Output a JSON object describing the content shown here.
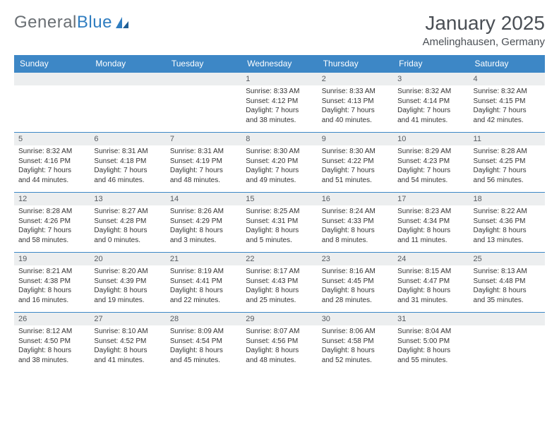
{
  "brand": {
    "part1": "General",
    "part2": "Blue"
  },
  "title": "January 2025",
  "location": "Amelinghausen, Germany",
  "colors": {
    "header_bg": "#3d87c6",
    "header_text": "#ffffff",
    "daynum_bg": "#eceeef",
    "border": "#3d87c6",
    "text": "#333333",
    "title": "#4a4f55",
    "logo_gray": "#6a6f74",
    "logo_blue": "#2f7dc0"
  },
  "weekdays": [
    "Sunday",
    "Monday",
    "Tuesday",
    "Wednesday",
    "Thursday",
    "Friday",
    "Saturday"
  ],
  "grid": [
    [
      null,
      null,
      null,
      {
        "d": "1",
        "sr": "8:33 AM",
        "ss": "4:12 PM",
        "dl": "7 hours and 38 minutes."
      },
      {
        "d": "2",
        "sr": "8:33 AM",
        "ss": "4:13 PM",
        "dl": "7 hours and 40 minutes."
      },
      {
        "d": "3",
        "sr": "8:32 AM",
        "ss": "4:14 PM",
        "dl": "7 hours and 41 minutes."
      },
      {
        "d": "4",
        "sr": "8:32 AM",
        "ss": "4:15 PM",
        "dl": "7 hours and 42 minutes."
      }
    ],
    [
      {
        "d": "5",
        "sr": "8:32 AM",
        "ss": "4:16 PM",
        "dl": "7 hours and 44 minutes."
      },
      {
        "d": "6",
        "sr": "8:31 AM",
        "ss": "4:18 PM",
        "dl": "7 hours and 46 minutes."
      },
      {
        "d": "7",
        "sr": "8:31 AM",
        "ss": "4:19 PM",
        "dl": "7 hours and 48 minutes."
      },
      {
        "d": "8",
        "sr": "8:30 AM",
        "ss": "4:20 PM",
        "dl": "7 hours and 49 minutes."
      },
      {
        "d": "9",
        "sr": "8:30 AM",
        "ss": "4:22 PM",
        "dl": "7 hours and 51 minutes."
      },
      {
        "d": "10",
        "sr": "8:29 AM",
        "ss": "4:23 PM",
        "dl": "7 hours and 54 minutes."
      },
      {
        "d": "11",
        "sr": "8:28 AM",
        "ss": "4:25 PM",
        "dl": "7 hours and 56 minutes."
      }
    ],
    [
      {
        "d": "12",
        "sr": "8:28 AM",
        "ss": "4:26 PM",
        "dl": "7 hours and 58 minutes."
      },
      {
        "d": "13",
        "sr": "8:27 AM",
        "ss": "4:28 PM",
        "dl": "8 hours and 0 minutes."
      },
      {
        "d": "14",
        "sr": "8:26 AM",
        "ss": "4:29 PM",
        "dl": "8 hours and 3 minutes."
      },
      {
        "d": "15",
        "sr": "8:25 AM",
        "ss": "4:31 PM",
        "dl": "8 hours and 5 minutes."
      },
      {
        "d": "16",
        "sr": "8:24 AM",
        "ss": "4:33 PM",
        "dl": "8 hours and 8 minutes."
      },
      {
        "d": "17",
        "sr": "8:23 AM",
        "ss": "4:34 PM",
        "dl": "8 hours and 11 minutes."
      },
      {
        "d": "18",
        "sr": "8:22 AM",
        "ss": "4:36 PM",
        "dl": "8 hours and 13 minutes."
      }
    ],
    [
      {
        "d": "19",
        "sr": "8:21 AM",
        "ss": "4:38 PM",
        "dl": "8 hours and 16 minutes."
      },
      {
        "d": "20",
        "sr": "8:20 AM",
        "ss": "4:39 PM",
        "dl": "8 hours and 19 minutes."
      },
      {
        "d": "21",
        "sr": "8:19 AM",
        "ss": "4:41 PM",
        "dl": "8 hours and 22 minutes."
      },
      {
        "d": "22",
        "sr": "8:17 AM",
        "ss": "4:43 PM",
        "dl": "8 hours and 25 minutes."
      },
      {
        "d": "23",
        "sr": "8:16 AM",
        "ss": "4:45 PM",
        "dl": "8 hours and 28 minutes."
      },
      {
        "d": "24",
        "sr": "8:15 AM",
        "ss": "4:47 PM",
        "dl": "8 hours and 31 minutes."
      },
      {
        "d": "25",
        "sr": "8:13 AM",
        "ss": "4:48 PM",
        "dl": "8 hours and 35 minutes."
      }
    ],
    [
      {
        "d": "26",
        "sr": "8:12 AM",
        "ss": "4:50 PM",
        "dl": "8 hours and 38 minutes."
      },
      {
        "d": "27",
        "sr": "8:10 AM",
        "ss": "4:52 PM",
        "dl": "8 hours and 41 minutes."
      },
      {
        "d": "28",
        "sr": "8:09 AM",
        "ss": "4:54 PM",
        "dl": "8 hours and 45 minutes."
      },
      {
        "d": "29",
        "sr": "8:07 AM",
        "ss": "4:56 PM",
        "dl": "8 hours and 48 minutes."
      },
      {
        "d": "30",
        "sr": "8:06 AM",
        "ss": "4:58 PM",
        "dl": "8 hours and 52 minutes."
      },
      {
        "d": "31",
        "sr": "8:04 AM",
        "ss": "5:00 PM",
        "dl": "8 hours and 55 minutes."
      },
      null
    ]
  ],
  "labels": {
    "sunrise": "Sunrise:",
    "sunset": "Sunset:",
    "daylight": "Daylight:"
  }
}
